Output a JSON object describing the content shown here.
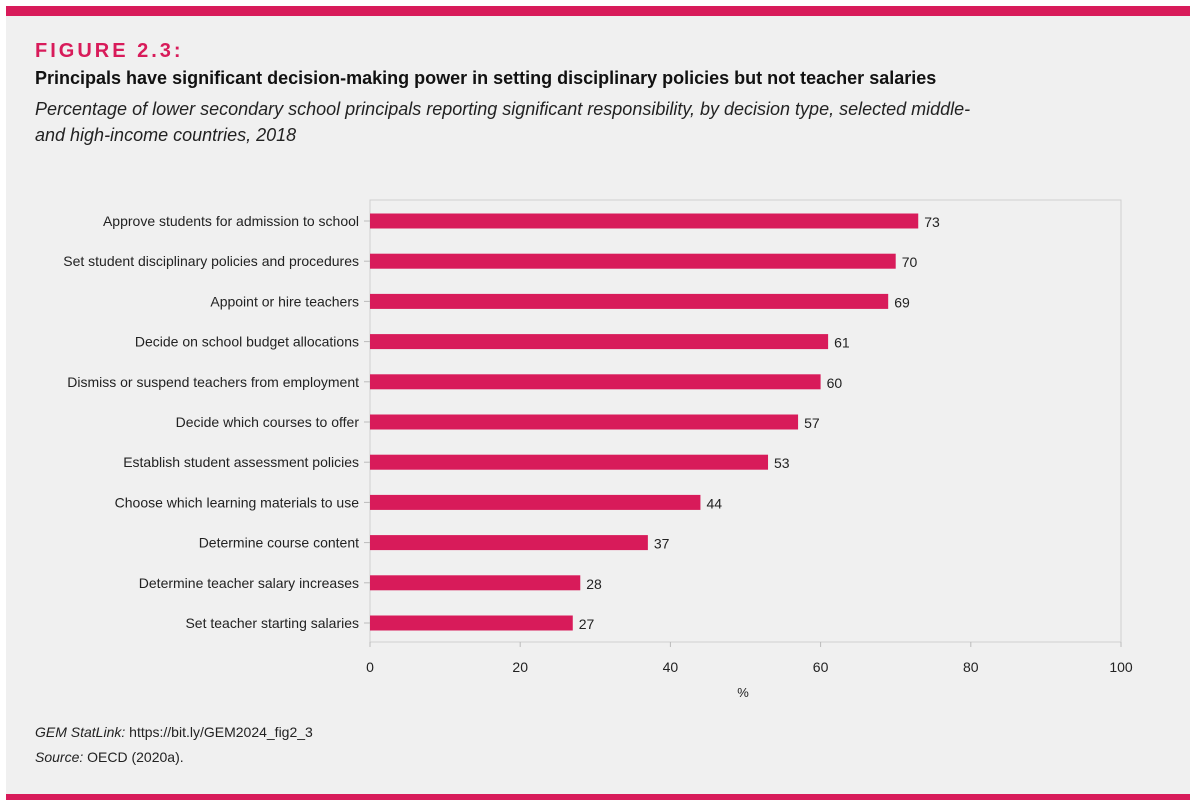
{
  "header": {
    "figure_label": "FIGURE 2.3:",
    "title": "Principals have significant decision-making power in setting disciplinary policies but not teacher salaries",
    "subtitle": "Percentage of lower secondary school principals reporting significant responsibility, by decision type, selected middle- and high-income countries, 2018"
  },
  "footer": {
    "statlink_label": "GEM StatLink:",
    "statlink_value": "https://bit.ly/GEM2024_fig2_3",
    "source_label": "Source:",
    "source_value": "OECD (2020a)."
  },
  "colors": {
    "accent": "#d81b5a",
    "bar": "#d81b5a",
    "background": "#f0f0f0"
  },
  "chart_data": {
    "type": "bar",
    "orientation": "horizontal",
    "categories": [
      "Approve students for admission to school",
      "Set student disciplinary policies and procedures",
      "Appoint or hire teachers",
      "Decide on school budget allocations",
      "Dismiss or suspend teachers from employment",
      "Decide which courses to offer",
      "Establish student assessment policies",
      "Choose which learning materials to use",
      "Determine course content",
      "Determine teacher salary increases",
      "Set teacher starting salaries"
    ],
    "values": [
      73,
      70,
      69,
      61,
      60,
      57,
      53,
      44,
      37,
      28,
      27
    ],
    "xlabel": "%",
    "xlim": [
      0,
      100
    ],
    "xticks": [
      0,
      20,
      40,
      60,
      80,
      100
    ],
    "grid": false,
    "legend": "none"
  }
}
